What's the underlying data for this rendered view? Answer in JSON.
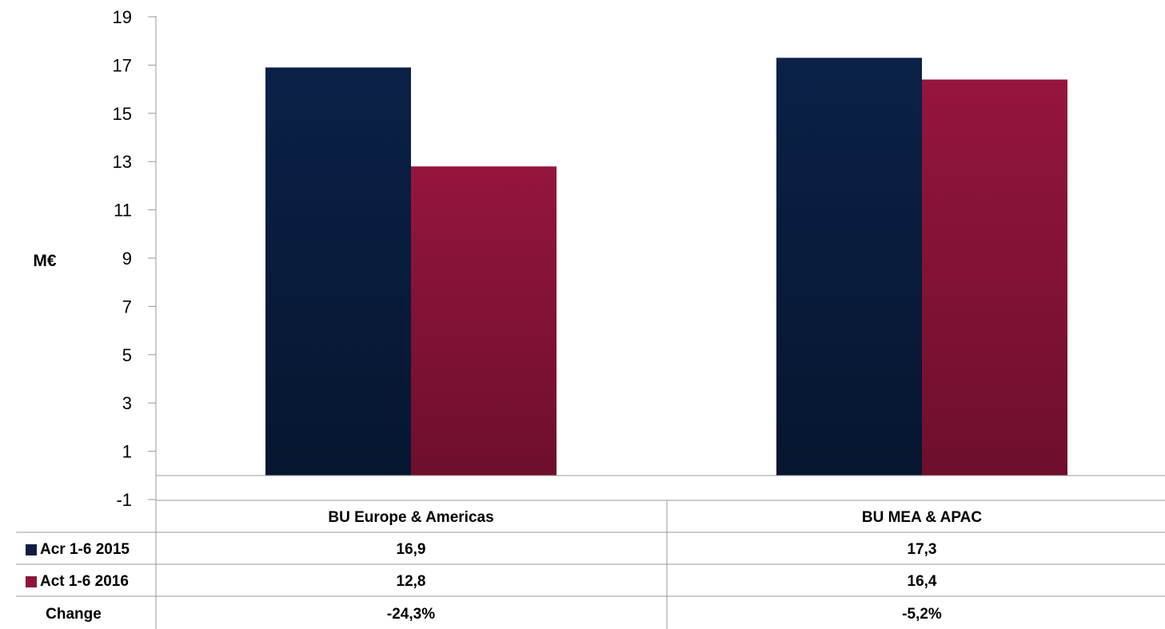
{
  "chart_data": {
    "type": "bar",
    "ylabel": "M€",
    "ylim": [
      -1,
      19
    ],
    "yticks": [
      "19",
      "17",
      "15",
      "13",
      "11",
      "9",
      "7",
      "5",
      "3",
      "1",
      "-1"
    ],
    "categories": [
      "BU Europe & Americas",
      "BU MEA & APAC"
    ],
    "series": [
      {
        "name": "Acr 1-6 2015",
        "values": [
          16.9,
          17.3
        ],
        "labels": [
          "16,9",
          "17,3"
        ],
        "color": "#0b1f45"
      },
      {
        "name": "Act 1-6 2016",
        "values": [
          12.8,
          16.4
        ],
        "labels": [
          "12,8",
          "16,4"
        ],
        "color": "#8e1538"
      }
    ],
    "table": {
      "change_label": "Change",
      "change_values": [
        "-24,3%",
        "-5,2%"
      ]
    }
  }
}
